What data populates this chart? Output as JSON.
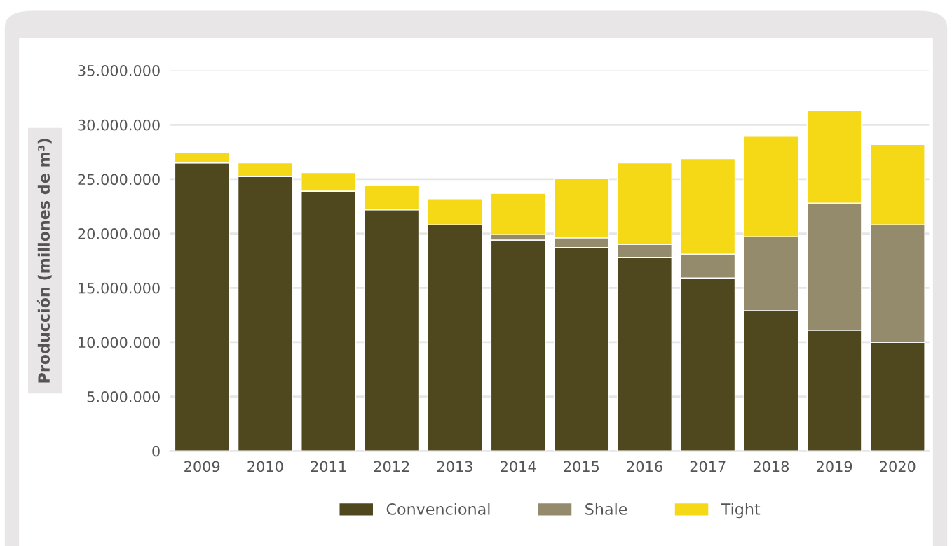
{
  "chart_data": {
    "type": "bar",
    "stacked": true,
    "ylabel": "Producción (millones de m³)",
    "categories": [
      "2009",
      "2010",
      "2011",
      "2012",
      "2013",
      "2014",
      "2015",
      "2016",
      "2017",
      "2018",
      "2019",
      "2020"
    ],
    "series": [
      {
        "name": "Convencional",
        "color": "#4f481e",
        "values": [
          26500000,
          25250000,
          23900000,
          22200000,
          20800000,
          19400000,
          18700000,
          17800000,
          15900000,
          12900000,
          11100000,
          10000000
        ]
      },
      {
        "name": "Shale",
        "color": "#948b6d",
        "values": [
          0,
          0,
          0,
          0,
          0,
          500000,
          900000,
          1200000,
          2200000,
          6800000,
          11700000,
          10800000
        ]
      },
      {
        "name": "Tight",
        "color": "#f5d917",
        "values": [
          970000,
          1250000,
          1700000,
          2200000,
          2400000,
          3800000,
          5500000,
          7500000,
          8800000,
          9300000,
          8500000,
          7400000
        ]
      }
    ],
    "ylim": [
      0,
      35000000
    ],
    "yticks": [
      {
        "value": 0,
        "label": "0"
      },
      {
        "value": 5000000,
        "label": "5.000.000"
      },
      {
        "value": 10000000,
        "label": "10.000.000"
      },
      {
        "value": 15000000,
        "label": "15.000.000"
      },
      {
        "value": 20000000,
        "label": "20.000.000"
      },
      {
        "value": 25000000,
        "label": "25.000.000"
      },
      {
        "value": 30000000,
        "label": "30.000.000"
      },
      {
        "value": 35000000,
        "label": "35.000.000"
      }
    ],
    "grid": "y",
    "legend": "bottom"
  }
}
